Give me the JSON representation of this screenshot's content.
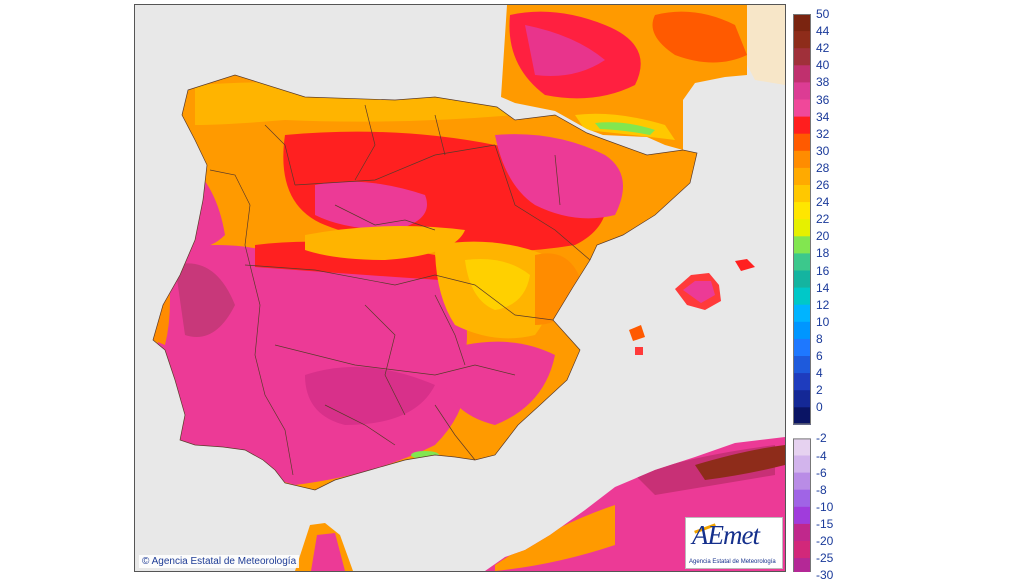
{
  "map": {
    "copyright": "© Agencia Estatal de Meteorología",
    "logo": {
      "word": "AEmet",
      "subtitle": "Agencia Estatal de Meteorología"
    },
    "colors": {
      "sea": "#e8e8e8",
      "foreign_land": "#f7e6c8",
      "border_line": "#5a3a2a"
    }
  },
  "legend": {
    "positive": [
      {
        "label": "50",
        "color": "#7a2410"
      },
      {
        "label": "44",
        "color": "#8e2c1a"
      },
      {
        "label": "42",
        "color": "#a0303a"
      },
      {
        "label": "40",
        "color": "#c0306e"
      },
      {
        "label": "38",
        "color": "#dc3c94"
      },
      {
        "label": "36",
        "color": "#f0489a"
      },
      {
        "label": "34",
        "color": "#ff1e1e"
      },
      {
        "label": "32",
        "color": "#ff5a00"
      },
      {
        "label": "30",
        "color": "#ff8c00"
      },
      {
        "label": "28",
        "color": "#ffaa00"
      },
      {
        "label": "26",
        "color": "#ffc800"
      },
      {
        "label": "24",
        "color": "#ffe600"
      },
      {
        "label": "22",
        "color": "#e6f000"
      },
      {
        "label": "20",
        "color": "#82e650"
      },
      {
        "label": "18",
        "color": "#3cc88c"
      },
      {
        "label": "16",
        "color": "#14b4a0"
      },
      {
        "label": "14",
        "color": "#00c8c8"
      },
      {
        "label": "12",
        "color": "#00b4ff"
      },
      {
        "label": "10",
        "color": "#0096ff"
      },
      {
        "label": "8",
        "color": "#1e78ff"
      },
      {
        "label": "6",
        "color": "#1e5adc"
      },
      {
        "label": "4",
        "color": "#1e3cbe"
      },
      {
        "label": "2",
        "color": "#142896"
      },
      {
        "label": "0",
        "color": "#0a1464"
      }
    ],
    "negative": [
      {
        "label": "-2",
        "color": "#e6d2f0"
      },
      {
        "label": "-4",
        "color": "#d2b4ec"
      },
      {
        "label": "-6",
        "color": "#b98ce6"
      },
      {
        "label": "-8",
        "color": "#a064e6"
      },
      {
        "label": "-10",
        "color": "#a03cdc"
      },
      {
        "label": "-15",
        "color": "#c0288c"
      },
      {
        "label": "-20",
        "color": "#d2287a"
      },
      {
        "label": "-25",
        "color": "#b42896"
      },
      {
        "label": "-30",
        "color": "#8c1e78"
      }
    ]
  }
}
